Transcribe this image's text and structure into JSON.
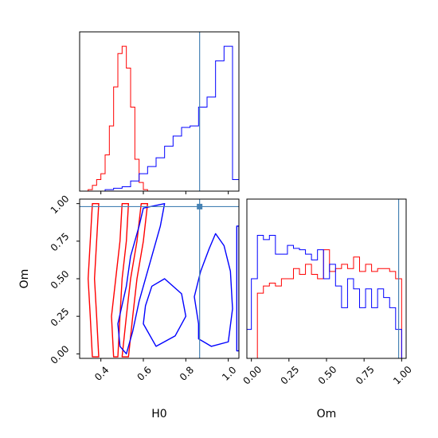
{
  "chart_data": {
    "type": "corner",
    "parameters": [
      "H0",
      "Om"
    ],
    "truth": {
      "H0": 0.865,
      "Om": 0.98
    },
    "colors": {
      "red_series": "#ff0000",
      "blue_series": "#0000ff",
      "truth": "#4682b4"
    },
    "grid": false,
    "legend": "none",
    "panels": [
      {
        "id": "h0-histogram",
        "type": "histogram",
        "x_param": "H0",
        "xlim": [
          0.3,
          1.05
        ],
        "x_ticks": [
          0.4,
          0.6,
          0.8,
          1.0
        ],
        "tick_labels_shown": false,
        "series": [
          {
            "color": "#ff0000",
            "bin_edges": [
              0.34,
              0.36,
              0.38,
              0.4,
              0.42,
              0.44,
              0.46,
              0.48,
              0.5,
              0.52,
              0.54,
              0.56,
              0.58,
              0.6,
              0.62
            ],
            "counts": [
              0.01,
              0.04,
              0.08,
              0.12,
              0.25,
              0.45,
              0.72,
              0.95,
              1.0,
              0.85,
              0.58,
              0.22,
              0.06,
              0.01
            ]
          },
          {
            "color": "#0000ff",
            "bin_edges": [
              0.42,
              0.46,
              0.5,
              0.54,
              0.58,
              0.62,
              0.66,
              0.7,
              0.74,
              0.78,
              0.82,
              0.86,
              0.9,
              0.94,
              0.98,
              1.02,
              1.05
            ],
            "counts": [
              0.01,
              0.02,
              0.03,
              0.07,
              0.12,
              0.17,
              0.23,
              0.31,
              0.38,
              0.44,
              0.45,
              0.58,
              0.65,
              0.9,
              1.0,
              0.08
            ]
          }
        ]
      },
      {
        "id": "h0-om-contour",
        "type": "contour",
        "x_param": "H0",
        "y_param": "Om",
        "xlim": [
          0.3,
          1.05
        ],
        "ylim": [
          -0.03,
          1.03
        ],
        "x_ticks": [
          0.4,
          0.6,
          0.8,
          1.0
        ],
        "x_tick_labels": [
          "0.4",
          "0.6",
          "0.8",
          "1.0"
        ],
        "y_ticks": [
          0.0,
          0.25,
          0.5,
          0.75,
          1.0
        ],
        "y_tick_labels": [
          "0.00",
          "0.25",
          "0.50",
          "0.75",
          "1.00"
        ],
        "xlabel": "H0",
        "ylabel": "Om",
        "contours": [
          {
            "color": "#ff0000",
            "points": [
              [
                0.36,
                -0.02
              ],
              [
                0.35,
                0.25
              ],
              [
                0.34,
                0.5
              ],
              [
                0.35,
                0.75
              ],
              [
                0.36,
                1.0
              ],
              [
                0.39,
                1.0
              ],
              [
                0.38,
                0.75
              ],
              [
                0.37,
                0.5
              ],
              [
                0.38,
                0.25
              ],
              [
                0.39,
                -0.02
              ]
            ]
          },
          {
            "color": "#ff0000",
            "points": [
              [
                0.46,
                -0.02
              ],
              [
                0.45,
                0.25
              ],
              [
                0.47,
                0.5
              ],
              [
                0.49,
                0.75
              ],
              [
                0.5,
                1.0
              ],
              [
                0.53,
                1.0
              ],
              [
                0.52,
                0.75
              ],
              [
                0.5,
                0.5
              ],
              [
                0.49,
                0.25
              ],
              [
                0.48,
                -0.02
              ]
            ]
          },
          {
            "color": "#ff0000",
            "points": [
              [
                0.5,
                -0.02
              ],
              [
                0.52,
                0.25
              ],
              [
                0.54,
                0.5
              ],
              [
                0.57,
                0.75
              ],
              [
                0.59,
                1.0
              ],
              [
                0.62,
                1.0
              ],
              [
                0.6,
                0.75
              ],
              [
                0.57,
                0.5
              ],
              [
                0.55,
                0.25
              ],
              [
                0.53,
                -0.02
              ]
            ]
          },
          {
            "color": "#0000ff",
            "points": [
              [
                0.52,
                0.0
              ],
              [
                0.55,
                0.15
              ],
              [
                0.58,
                0.35
              ],
              [
                0.62,
                0.55
              ],
              [
                0.68,
                0.85
              ],
              [
                0.7,
                1.0
              ],
              [
                0.6,
                0.97
              ],
              [
                0.58,
                0.85
              ],
              [
                0.54,
                0.65
              ],
              [
                0.52,
                0.45
              ],
              [
                0.48,
                0.2
              ],
              [
                0.49,
                0.05
              ]
            ]
          },
          {
            "color": "#0000ff",
            "points": [
              [
                0.86,
                0.1
              ],
              [
                0.92,
                0.05
              ],
              [
                1.0,
                0.08
              ],
              [
                1.02,
                0.3
              ],
              [
                1.01,
                0.55
              ],
              [
                0.98,
                0.72
              ],
              [
                0.94,
                0.8
              ],
              [
                0.91,
                0.7
              ],
              [
                0.87,
                0.55
              ],
              [
                0.84,
                0.38
              ],
              [
                0.86,
                0.2
              ]
            ]
          },
          {
            "color": "#0000ff",
            "points": [
              [
                0.6,
                0.2
              ],
              [
                0.66,
                0.05
              ],
              [
                0.75,
                0.12
              ],
              [
                0.8,
                0.25
              ],
              [
                0.78,
                0.4
              ],
              [
                0.7,
                0.5
              ],
              [
                0.64,
                0.45
              ],
              [
                0.61,
                0.32
              ]
            ]
          },
          {
            "color": "#0000ff",
            "points": [
              [
                1.04,
                0.02
              ],
              [
                1.05,
                0.02
              ],
              [
                1.05,
                0.85
              ],
              [
                1.04,
                0.85
              ]
            ]
          }
        ]
      },
      {
        "id": "om-histogram",
        "type": "histogram",
        "x_param": "Om",
        "xlim": [
          -0.03,
          1.03
        ],
        "ylim": [
          0,
          1.1
        ],
        "x_ticks": [
          0.0,
          0.25,
          0.5,
          0.75,
          1.0
        ],
        "x_tick_labels": [
          "0.00",
          "0.25",
          "0.50",
          "0.75",
          "1.00"
        ],
        "xlabel": "Om",
        "series": [
          {
            "color": "#ff0000",
            "bin_edges": [
              0.0,
              0.04,
              0.08,
              0.12,
              0.16,
              0.2,
              0.24,
              0.28,
              0.32,
              0.36,
              0.4,
              0.44,
              0.48,
              0.52,
              0.56,
              0.6,
              0.64,
              0.68,
              0.72,
              0.76,
              0.8,
              0.84,
              0.88,
              0.92,
              0.96,
              1.0
            ],
            "counts": [
              0.0,
              0.45,
              0.5,
              0.52,
              0.5,
              0.55,
              0.55,
              0.62,
              0.58,
              0.65,
              0.58,
              0.55,
              0.75,
              0.6,
              0.62,
              0.65,
              0.62,
              0.7,
              0.6,
              0.65,
              0.6,
              0.62,
              0.62,
              0.6,
              0.55
            ]
          },
          {
            "color": "#0000ff",
            "bin_edges": [
              -0.03,
              0.0,
              0.04,
              0.08,
              0.12,
              0.16,
              0.2,
              0.24,
              0.28,
              0.32,
              0.36,
              0.4,
              0.44,
              0.48,
              0.52,
              0.56,
              0.6,
              0.64,
              0.68,
              0.72,
              0.76,
              0.8,
              0.84,
              0.88,
              0.92,
              0.96,
              1.0
            ],
            "counts": [
              0.2,
              0.55,
              0.85,
              0.82,
              0.85,
              0.72,
              0.72,
              0.78,
              0.76,
              0.75,
              0.72,
              0.68,
              0.75,
              0.55,
              0.65,
              0.5,
              0.35,
              0.55,
              0.48,
              0.35,
              0.48,
              0.35,
              0.48,
              0.42,
              0.35,
              0.2
            ]
          }
        ]
      }
    ]
  }
}
